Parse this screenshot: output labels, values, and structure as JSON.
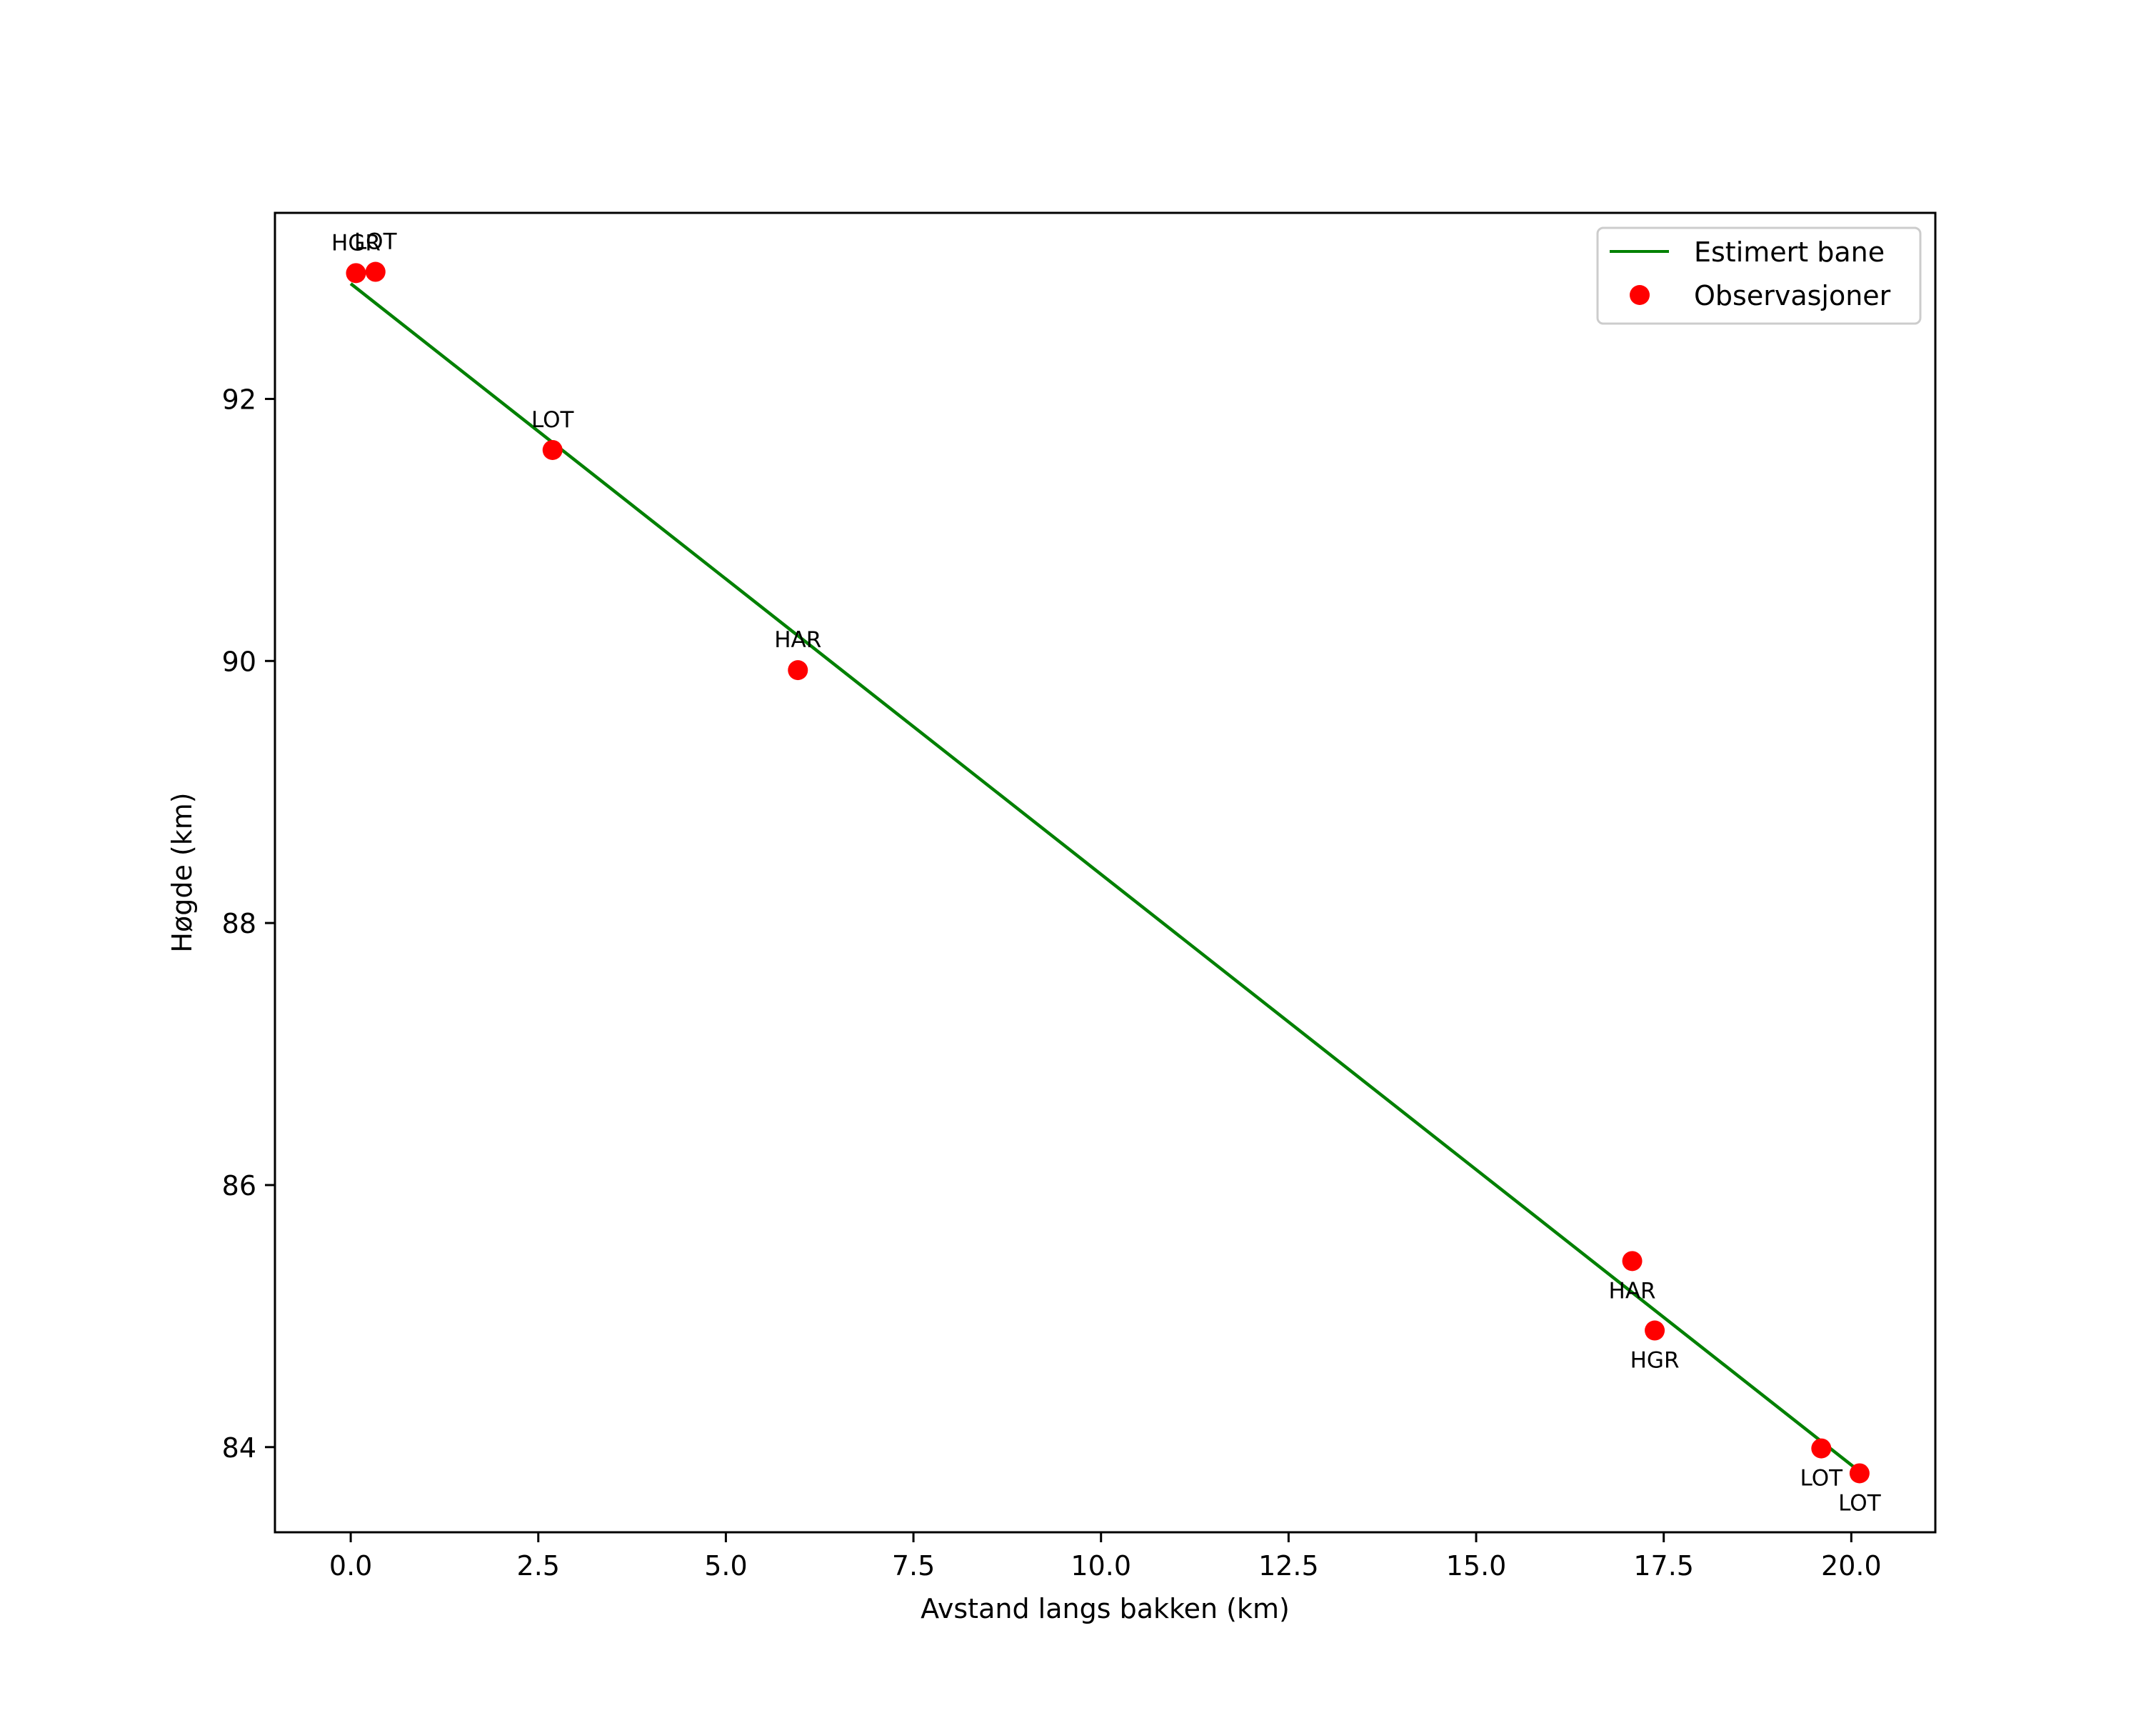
{
  "chart_data": {
    "type": "scatter",
    "title": "",
    "xlabel": "Avstand langs bakken (km)",
    "ylabel": "Høgde (km)",
    "xlim": [
      -1.01,
      21.12
    ],
    "ylim": [
      83.35,
      93.42
    ],
    "grid": false,
    "legend_position": "upper right",
    "xticks": [
      0.0,
      2.5,
      5.0,
      7.5,
      10.0,
      12.5,
      15.0,
      17.5,
      20.0
    ],
    "xtick_labels": [
      "0.0",
      "2.5",
      "5.0",
      "7.5",
      "10.0",
      "12.5",
      "15.0",
      "17.5",
      "20.0"
    ],
    "yticks": [
      84,
      86,
      88,
      90,
      92
    ],
    "ytick_labels": [
      "84",
      "86",
      "88",
      "90",
      "92"
    ],
    "series": [
      {
        "name": "Estimert bane",
        "type": "line",
        "color": "#008000",
        "x": [
          0.0,
          20.03
        ],
        "y": [
          92.88,
          83.85
        ]
      },
      {
        "name": "Observasjoner",
        "type": "scatter",
        "color": "#ff0000",
        "points": [
          {
            "x": 0.07,
            "y": 92.96,
            "label": "HGR",
            "label_pos": "above"
          },
          {
            "x": 0.33,
            "y": 92.97,
            "label": "LOT",
            "label_pos": "above"
          },
          {
            "x": 2.69,
            "y": 91.61,
            "label": "LOT",
            "label_pos": "above"
          },
          {
            "x": 5.96,
            "y": 89.93,
            "label": "HAR",
            "label_pos": "above"
          },
          {
            "x": 17.08,
            "y": 85.42,
            "label": "HAR",
            "label_pos": "below"
          },
          {
            "x": 17.38,
            "y": 84.89,
            "label": "HGR",
            "label_pos": "below"
          },
          {
            "x": 19.6,
            "y": 83.99,
            "label": "LOT",
            "label_pos": "below"
          },
          {
            "x": 20.11,
            "y": 83.8,
            "label": "LOT",
            "label_pos": "below"
          }
        ]
      }
    ]
  },
  "legend": {
    "items": [
      {
        "label": "Estimert bane",
        "symbol": "line",
        "color": "#008000"
      },
      {
        "label": "Observasjoner",
        "symbol": "dot",
        "color": "#ff0000"
      }
    ]
  },
  "colors": {
    "line": "#008000",
    "marker": "#ff0000",
    "axes": "#000000",
    "legend_border": "#cccccc",
    "background": "#ffffff"
  }
}
